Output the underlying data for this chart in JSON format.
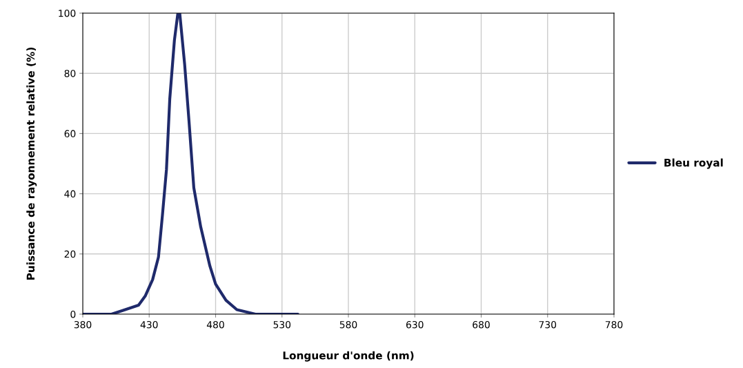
{
  "chart_data": {
    "type": "line",
    "xlabel": "Longueur d'onde (nm)",
    "ylabel": "Puissance de rayonnement relative (%)",
    "series": [
      {
        "name": "Bleu royal",
        "color": "#1f2a6b",
        "x": [
          380,
          401.6,
          410,
          422,
          427,
          432.6,
          437,
          440,
          443,
          445.5,
          449,
          451.6,
          453,
          456.7,
          460,
          463.6,
          468.8,
          475.7,
          480,
          487.8,
          496,
          510,
          542
        ],
        "values": [
          0,
          0,
          1.2,
          3,
          6,
          11.5,
          19,
          33,
          48,
          71.5,
          91,
          100,
          100,
          83,
          64,
          42,
          29,
          16,
          10,
          4.6,
          1.5,
          0,
          0
        ]
      }
    ],
    "xlim": [
      380,
      780
    ],
    "xticks": [
      380,
      430,
      480,
      530,
      580,
      630,
      680,
      730,
      780
    ],
    "ylim": [
      0,
      100
    ],
    "yticks": [
      0,
      20,
      40,
      60,
      80,
      100
    ],
    "grid": true,
    "legend": "right"
  }
}
